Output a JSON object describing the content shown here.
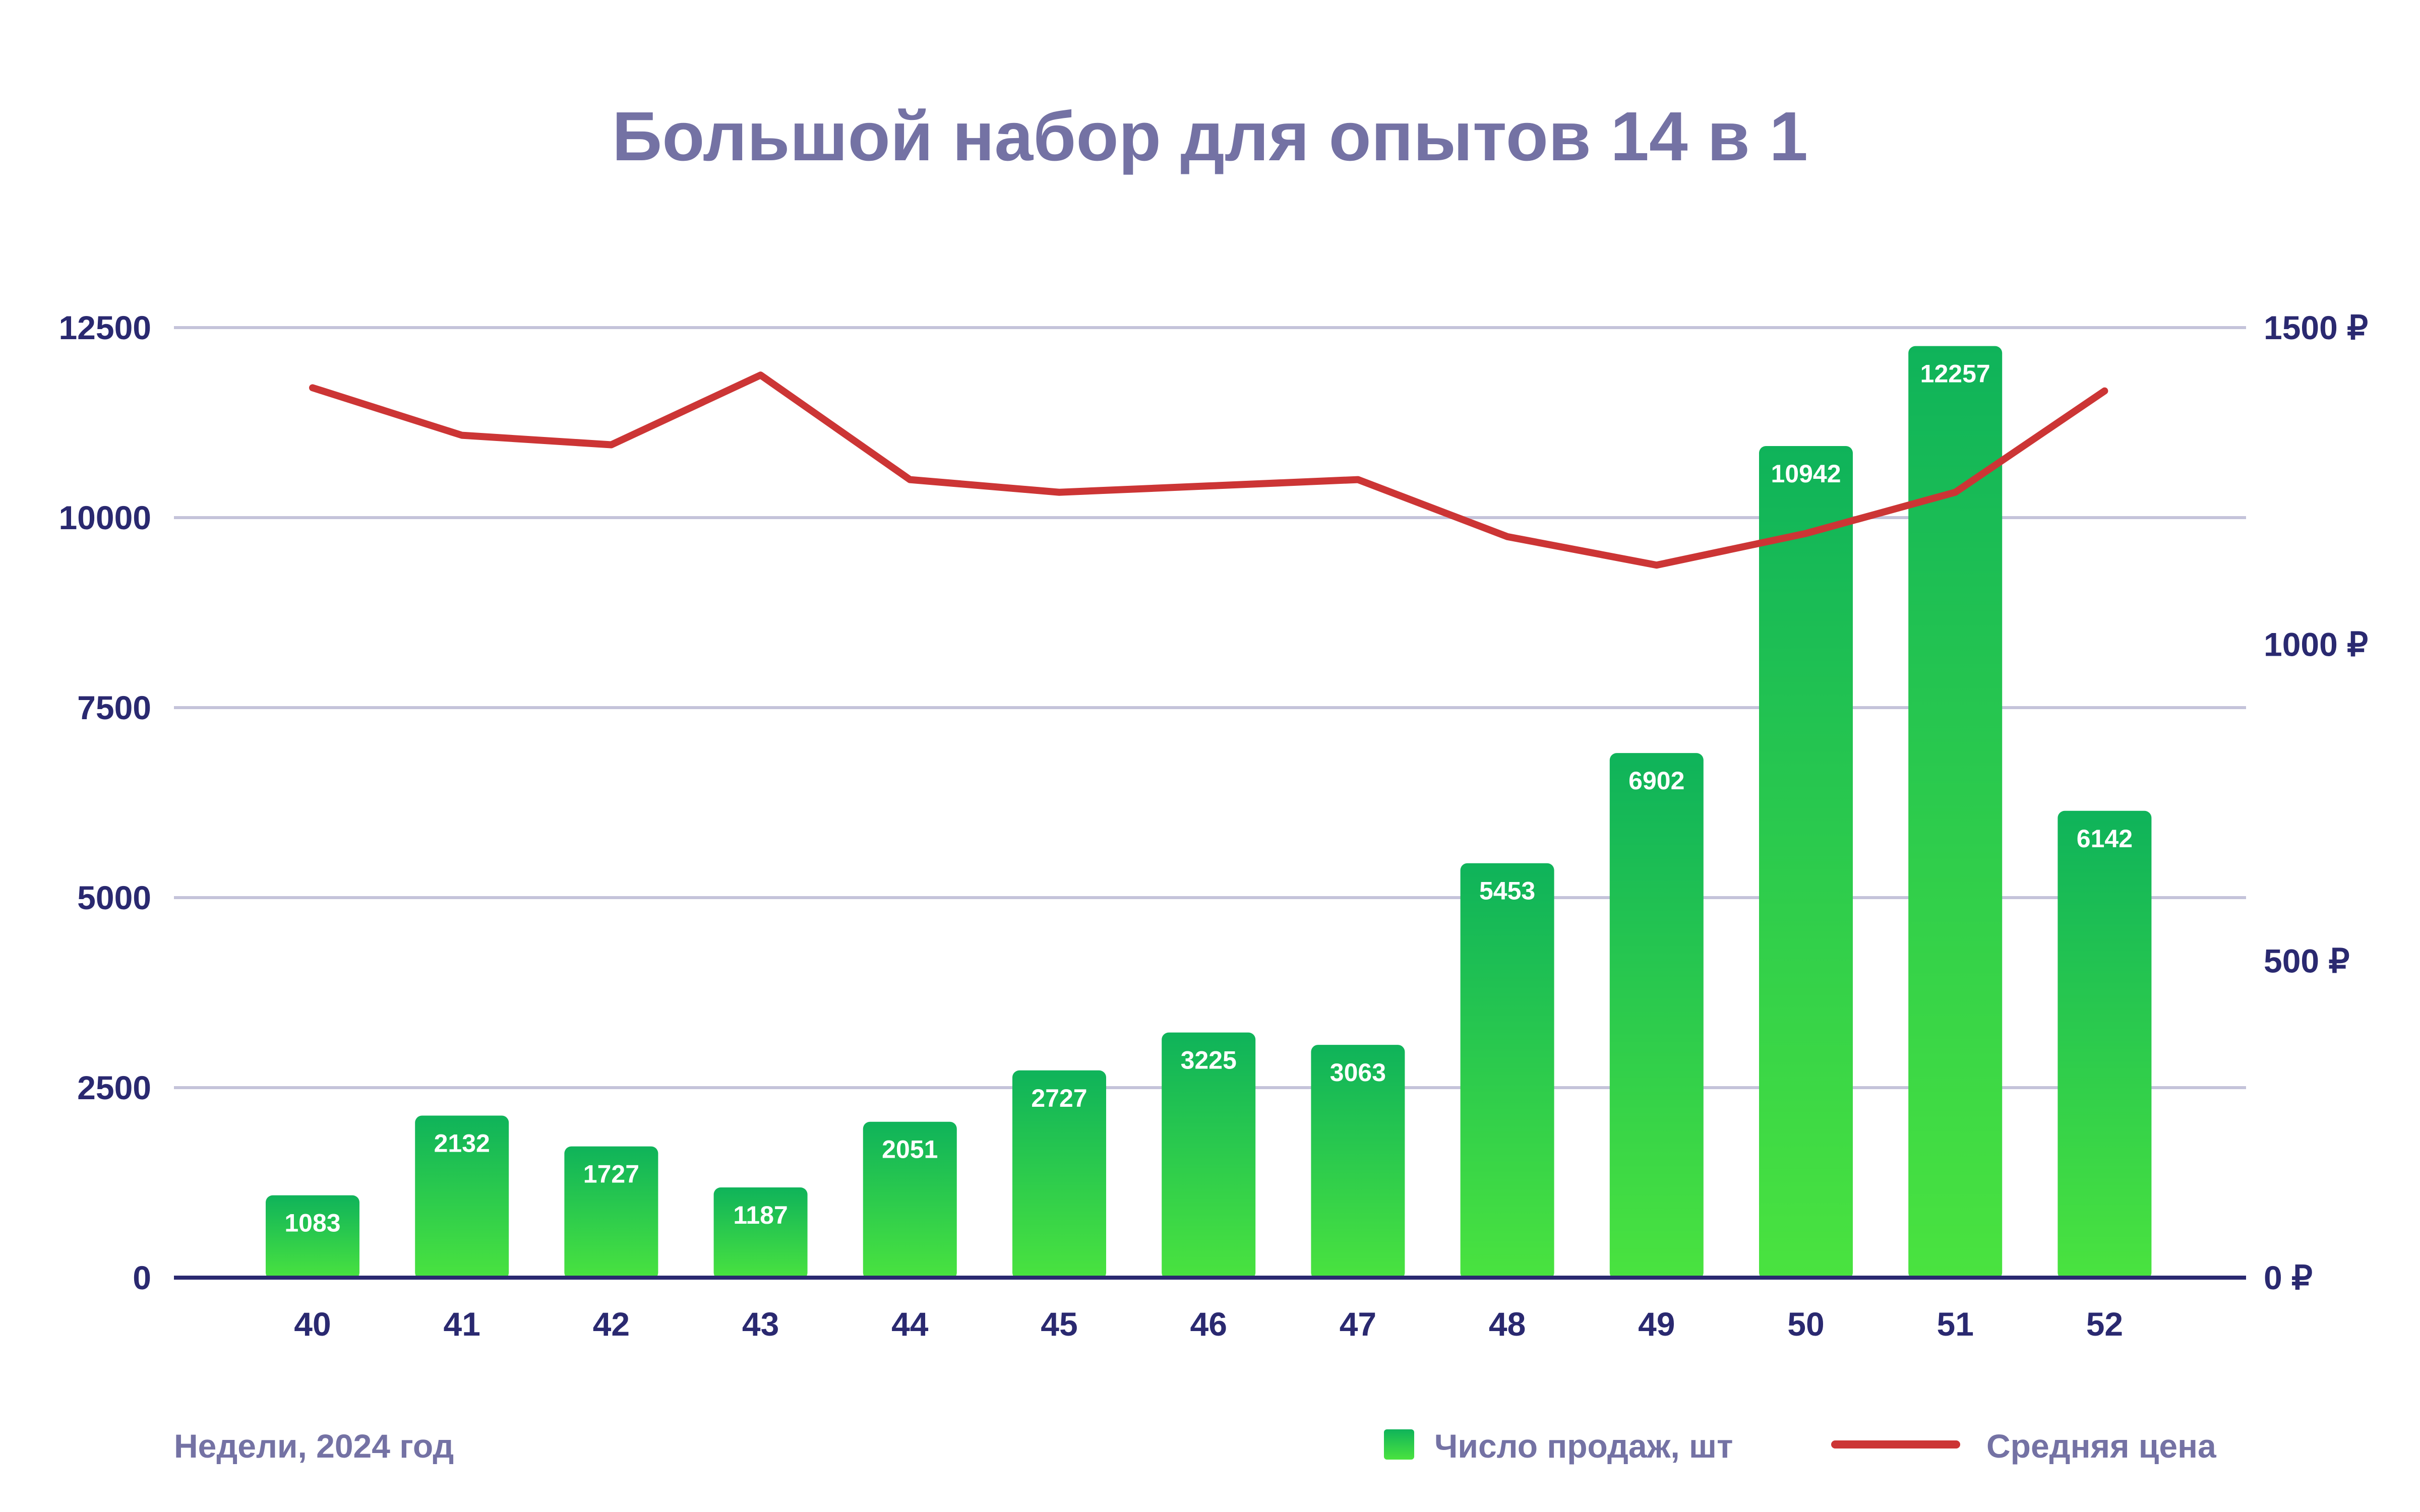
{
  "chart_data": {
    "type": "bar",
    "title": "Большой набор для опытов 14 в 1",
    "xlabel": "Недели, 2024 год",
    "categories": [
      "40",
      "41",
      "42",
      "43",
      "44",
      "45",
      "46",
      "47",
      "48",
      "49",
      "50",
      "51",
      "52"
    ],
    "series": [
      {
        "name": "Число продаж, шт",
        "type": "bar",
        "axis": "left",
        "values": [
          1083,
          2132,
          1727,
          1187,
          2051,
          2727,
          3225,
          3063,
          5453,
          6902,
          10942,
          12257,
          6142
        ]
      },
      {
        "name": "Средняя цена",
        "type": "line",
        "axis": "right",
        "values": [
          1405,
          1330,
          1315,
          1425,
          1260,
          1240,
          1250,
          1260,
          1170,
          1125,
          1175,
          1240,
          1400
        ]
      }
    ],
    "ylim_left": [
      0,
      12500
    ],
    "yticks_left": [
      "0",
      "2500",
      "5000",
      "7500",
      "10000",
      "12500"
    ],
    "ylim_right": [
      0,
      1500
    ],
    "yticks_right": [
      "0 ₽",
      "500 ₽",
      "1000 ₽",
      "1500 ₽"
    ],
    "grid": true,
    "legend_position": "bottom-right",
    "colors": {
      "bar_top": "#0fb35a",
      "bar_bottom": "#4ae33f",
      "line": "#cc3535",
      "grid": "#c4c3da",
      "axis": "#2a2970",
      "title": "#7472a4"
    }
  }
}
